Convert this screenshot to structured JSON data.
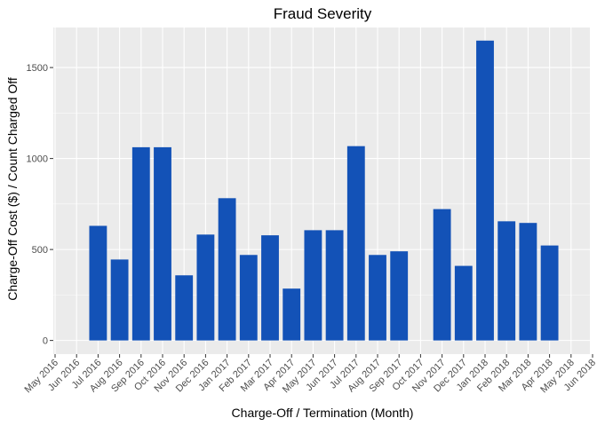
{
  "chart_data": {
    "type": "bar",
    "title": "Fraud Severity",
    "xlabel": "Charge-Off / Termination (Month)",
    "ylabel": "Charge-Off Cost ($) / Count Charged Off",
    "ylim": [
      -75,
      1720
    ],
    "yticks": [
      0,
      500,
      1000,
      1500
    ],
    "grid": true,
    "legend": "none",
    "bar_color": "#1352B7",
    "panel_color": "#EBEBEB",
    "categories": [
      "May 2016",
      "Jun 2016",
      "Jul 2016",
      "Aug 2016",
      "Sep 2016",
      "Oct 2016",
      "Nov 2016",
      "Dec 2016",
      "Jan 2017",
      "Feb 2017",
      "Mar 2017",
      "Apr 2017",
      "May 2017",
      "Jun 2017",
      "Jul 2017",
      "Aug 2017",
      "Sep 2017",
      "Oct 2017",
      "Nov 2017",
      "Dec 2017",
      "Jan 2018",
      "Feb 2018",
      "Mar 2018",
      "Apr 2018",
      "May 2018",
      "Jun 2018"
    ],
    "bars": [
      {
        "x": "Jul 2016",
        "value": 630
      },
      {
        "x": "Aug 2016",
        "value": 445
      },
      {
        "x": "Sep 2016",
        "value": 1062
      },
      {
        "x": "Oct 2016",
        "value": 1062
      },
      {
        "x": "Nov 2016",
        "value": 358
      },
      {
        "x": "Dec 2016",
        "value": 582
      },
      {
        "x": "Jan 2017",
        "value": 782
      },
      {
        "x": "Feb 2017",
        "value": 470
      },
      {
        "x": "Mar 2017",
        "value": 578
      },
      {
        "x": "Apr 2017",
        "value": 285
      },
      {
        "x": "May 2017",
        "value": 606
      },
      {
        "x": "Jun 2017",
        "value": 606
      },
      {
        "x": "Jul 2017",
        "value": 1068
      },
      {
        "x": "Aug 2017",
        "value": 470
      },
      {
        "x": "Sep 2017",
        "value": 490
      },
      {
        "x": "Nov 2017",
        "value": 722
      },
      {
        "x": "Dec 2017",
        "value": 410
      },
      {
        "x": "Jan 2018",
        "value": 1648
      },
      {
        "x": "Feb 2018",
        "value": 655
      },
      {
        "x": "Mar 2018",
        "value": 646
      },
      {
        "x": "Apr 2018",
        "value": 522
      }
    ]
  }
}
